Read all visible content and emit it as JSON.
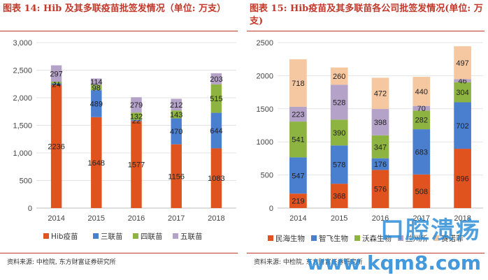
{
  "left": {
    "title": "图表 14: Hib 及其多联疫苗批签发情况（单位: 万支）",
    "source": "资料来源: 中检院, 东方财富证券研究所"
  },
  "right": {
    "title": "图表 15: Hib疫苗及其多联苗各公司批签发情况(单位: 万支)",
    "source": "资料来源: 中检院, 东方财富证券研究所"
  },
  "watermark": {
    "text": "口腔溃疡",
    "url": "www.kqm8.com"
  },
  "colors": {
    "orange": "#e0531f",
    "blue": "#4a7ecf",
    "green": "#8db440",
    "purple": "#b4a2c8",
    "peach": "#f6c8a2"
  },
  "chart_data": [
    {
      "type": "bar",
      "stacked": true,
      "categories": [
        "2014",
        "2015",
        "2016",
        "2017",
        "2018"
      ],
      "series": [
        {
          "name": "Hib疫苗",
          "values": [
            2236,
            1648,
            1577,
            1156,
            1083
          ],
          "color": "#e0531f"
        },
        {
          "name": "三联苗",
          "values": [
            24,
            489,
            22,
            470,
            644
          ],
          "color": "#4a7ecf"
        },
        {
          "name": "四联苗",
          "values": [
            31,
            98,
            132,
            143,
            515
          ],
          "color": "#8db440"
        },
        {
          "name": "五联苗",
          "values": [
            297,
            114,
            279,
            212,
            203
          ],
          "color": "#b4a2c8"
        }
      ],
      "yticks": [
        "0",
        "500",
        "1,000",
        "1,500",
        "2,000",
        "2,500",
        "3,000"
      ],
      "ylim": [
        0,
        3000
      ],
      "grid": true,
      "legend": "bottom"
    },
    {
      "type": "bar",
      "stacked": true,
      "categories": [
        "2014",
        "2015",
        "2016",
        "2017",
        "2018"
      ],
      "series": [
        {
          "name": "民海生物",
          "values": [
            219,
            368,
            576,
            508,
            896
          ],
          "color": "#e0531f"
        },
        {
          "name": "智飞生物",
          "values": [
            547,
            578,
            176,
            683,
            702
          ],
          "color": "#4a7ecf"
        },
        {
          "name": "沃森生物",
          "values": [
            541,
            390,
            347,
            282,
            304
          ],
          "color": "#8db440"
        },
        {
          "name": "兰州所",
          "values": [
            223,
            528,
            398,
            70,
            46
          ],
          "color": "#b4a2c8"
        },
        {
          "name": "赛诺菲",
          "values": [
            718,
            260,
            472,
            440,
            497
          ],
          "color": "#f6c8a2"
        }
      ],
      "yticks": [
        "0",
        "500",
        "1000",
        "1500",
        "2000",
        "2500"
      ],
      "ylim": [
        0,
        2500
      ],
      "grid": true,
      "legend": "bottom"
    }
  ]
}
